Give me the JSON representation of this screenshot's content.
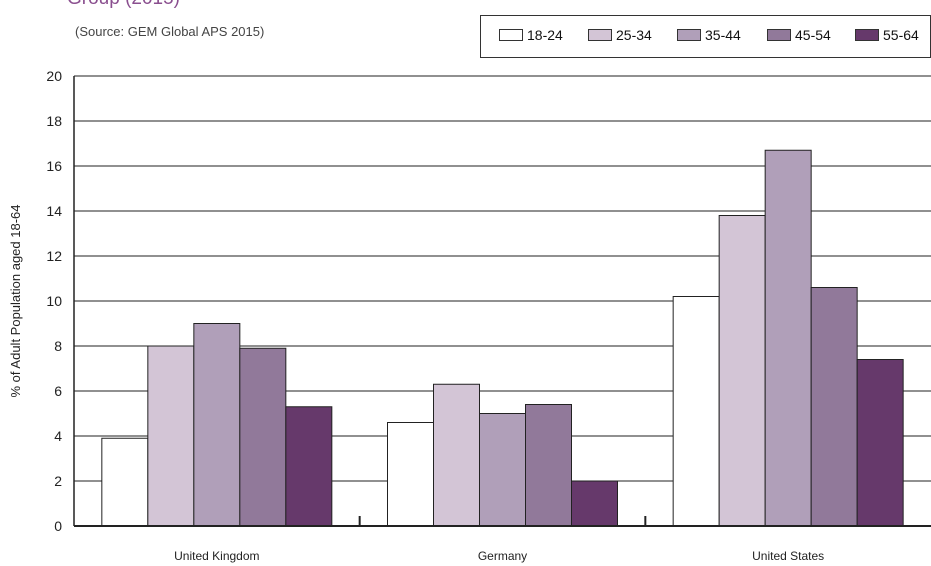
{
  "title": "Group (2015)",
  "subtitle": "(Source: GEM Global APS 2015)",
  "chart_data": {
    "type": "bar",
    "title": "Group (2015)",
    "subtitle": "(Source: GEM Global APS 2015)",
    "ylabel": "% of Adult Population aged 18-64",
    "xlabel": "",
    "ylim": [
      0,
      20
    ],
    "yticks": [
      0,
      2,
      4,
      6,
      8,
      10,
      12,
      14,
      16,
      18,
      20
    ],
    "grid": true,
    "legend_position": "top-right",
    "categories": [
      "United Kingdom",
      "Germany",
      "United States"
    ],
    "series": [
      {
        "name": "18-24",
        "color": "#ffffff",
        "values": [
          3.9,
          4.6,
          10.2
        ]
      },
      {
        "name": "25-34",
        "color": "#d3c5d6",
        "values": [
          8.0,
          6.3,
          13.8
        ]
      },
      {
        "name": "35-44",
        "color": "#b09fb9",
        "values": [
          9.0,
          5.0,
          16.7
        ]
      },
      {
        "name": "45-54",
        "color": "#91799a",
        "values": [
          7.9,
          5.4,
          10.6
        ]
      },
      {
        "name": "55-64",
        "color": "#66396b",
        "values": [
          5.3,
          2.0,
          7.4
        ]
      }
    ]
  }
}
